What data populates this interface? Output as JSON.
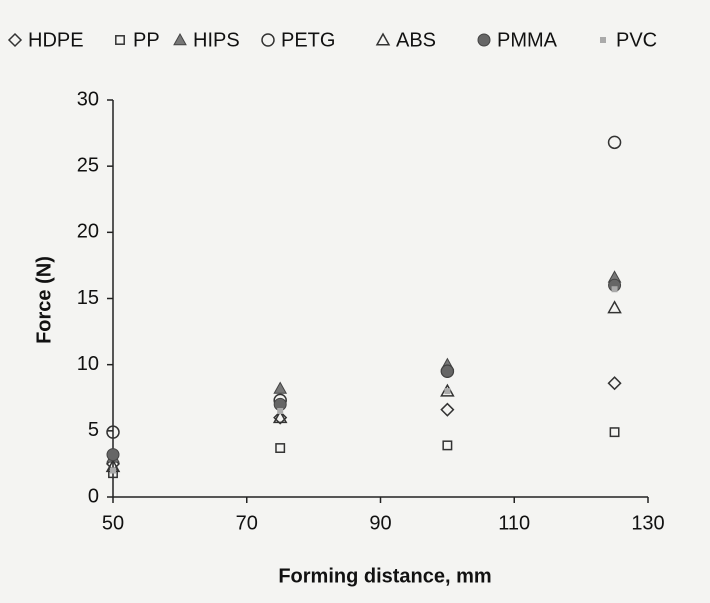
{
  "chart_data": {
    "type": "scatter",
    "x_label": "Forming distance, mm",
    "y_label": "Force (N)",
    "x": [
      50,
      75,
      100,
      125
    ],
    "series": [
      {
        "name": "HDPE",
        "marker": "diamond-open",
        "color": "#333333",
        "values": [
          2.5,
          6.0,
          6.6,
          8.6
        ]
      },
      {
        "name": "PP",
        "marker": "square-open",
        "color": "#333333",
        "values": [
          1.8,
          3.7,
          3.9,
          4.9
        ]
      },
      {
        "name": "HIPS",
        "marker": "triangle-filled",
        "color": "#777777",
        "values": [
          3.0,
          8.2,
          10.0,
          16.6
        ]
      },
      {
        "name": "PETG",
        "marker": "circle-open",
        "color": "#333333",
        "values": [
          4.9,
          7.3,
          9.5,
          26.8
        ]
      },
      {
        "name": "ABS",
        "marker": "triangle-open",
        "color": "#333333",
        "values": [
          2.3,
          6.0,
          8.0,
          14.3
        ]
      },
      {
        "name": "PMMA",
        "marker": "circle-filled",
        "color": "#666666",
        "values": [
          3.2,
          7.0,
          9.5,
          16.0
        ]
      },
      {
        "name": "PVC",
        "marker": "star",
        "color": "#aaaaaa",
        "values": [
          2.0,
          6.5,
          8.0,
          15.7
        ]
      }
    ],
    "xlim": [
      50,
      130
    ],
    "xticks": [
      50,
      70,
      90,
      110,
      130
    ],
    "ylim": [
      0,
      30
    ],
    "yticks": [
      0,
      5,
      10,
      15,
      20,
      25,
      30
    ],
    "grid": false,
    "legend": "top"
  }
}
